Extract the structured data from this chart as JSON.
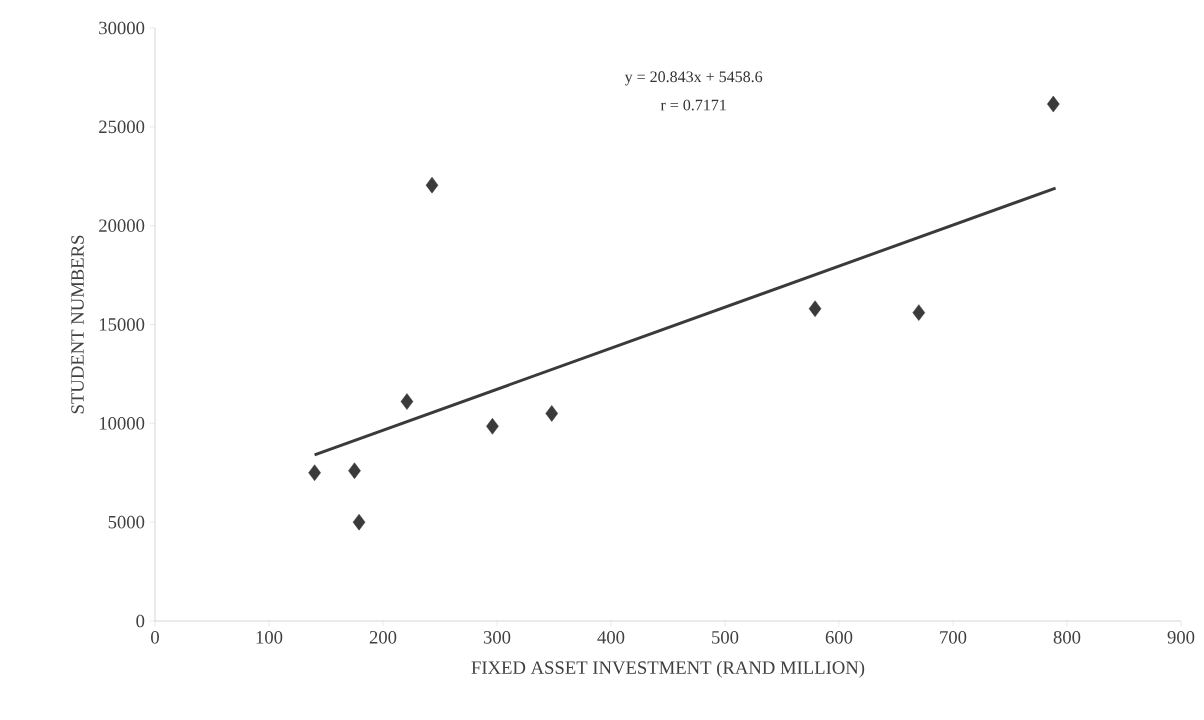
{
  "chart_data": {
    "type": "scatter",
    "xlabel": "FIXED ASSET INVESTMENT (RAND MILLION)",
    "ylabel": "STUDENT NUMBERS",
    "annotations": [
      "y = 20.843x + 5458.6",
      "r = 0.7171"
    ],
    "xlim": [
      0,
      900
    ],
    "xticks": [
      0,
      100,
      200,
      300,
      400,
      500,
      600,
      700,
      800,
      900
    ],
    "ylim": [
      0,
      30000
    ],
    "yticks": [
      0,
      5000,
      10000,
      15000,
      20000,
      25000,
      30000
    ],
    "grid": false,
    "series": [
      {
        "color": "#3a3a3a",
        "marker": "diamond",
        "x": [
          140,
          175,
          179,
          221,
          243,
          296,
          348,
          579,
          670,
          788
        ],
        "values": [
          7500,
          7600,
          5000,
          11100,
          22050,
          9850,
          10500,
          15800,
          15600,
          26150
        ]
      },
      {
        "type": "line",
        "color": "#3a3a3a",
        "marker": "none",
        "line_style": "solid",
        "x": [
          140,
          790
        ],
        "values": [
          8400,
          21900
        ]
      }
    ]
  }
}
